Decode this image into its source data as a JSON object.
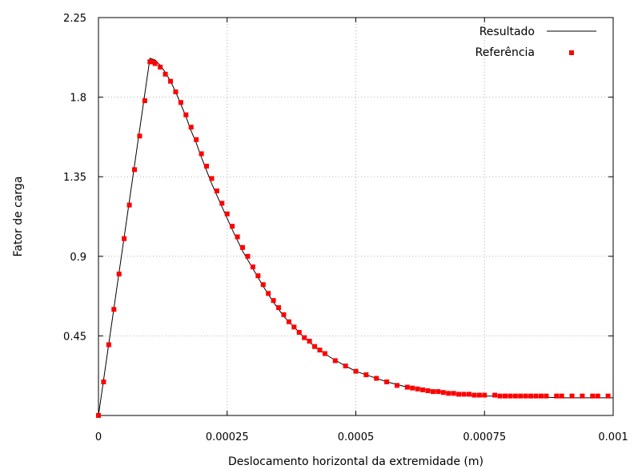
{
  "chart_data": {
    "type": "line",
    "title": "",
    "xlabel": "Deslocamento horizontal da extremidade (m)",
    "ylabel": "Fator de carga",
    "xlim": [
      0,
      0.001
    ],
    "ylim": [
      0,
      2.25
    ],
    "xticks": [
      0,
      0.00025,
      0.0005,
      0.00075,
      0.001
    ],
    "xtick_labels": [
      "0",
      "0.00025",
      "0.0005",
      "0.00075",
      "0.001"
    ],
    "yticks": [
      0.45,
      0.9,
      1.35,
      1.8,
      2.25
    ],
    "ytick_labels": [
      "0.45",
      "0.9",
      "1.35",
      "1.8",
      "2.25"
    ],
    "grid": true,
    "legend_position": "top-right",
    "series": [
      {
        "name": "Resultado",
        "style": "line",
        "color": "#000000",
        "x": [
          0,
          0.0001,
          0.00011,
          0.00012,
          0.00013,
          0.00014,
          0.00015,
          0.00016,
          0.00017,
          0.00018,
          0.00019,
          0.0002,
          0.00022,
          0.00024,
          0.00026,
          0.00028,
          0.0003,
          0.00032,
          0.00034,
          0.00036,
          0.00038,
          0.0004,
          0.00042,
          0.00045,
          0.00048,
          0.0005,
          0.00053,
          0.00056,
          0.0006,
          0.00065,
          0.0007,
          0.00075,
          0.0008,
          0.00085,
          0.0009,
          0.00095,
          0.001
        ],
        "y": [
          0,
          2.02,
          2.01,
          1.98,
          1.94,
          1.89,
          1.83,
          1.76,
          1.69,
          1.61,
          1.54,
          1.46,
          1.31,
          1.18,
          1.05,
          0.93,
          0.83,
          0.73,
          0.64,
          0.56,
          0.5,
          0.44,
          0.39,
          0.33,
          0.28,
          0.25,
          0.22,
          0.19,
          0.16,
          0.14,
          0.12,
          0.11,
          0.11,
          0.105,
          0.1,
          0.1,
          0.1
        ]
      },
      {
        "name": "Referência",
        "style": "markers",
        "color": "#ff0000",
        "x": [
          0,
          1e-05,
          2e-05,
          3e-05,
          4e-05,
          5e-05,
          6e-05,
          7e-05,
          8e-05,
          9e-05,
          0.0001,
          0.000105,
          0.00011,
          0.00012,
          0.00013,
          0.00014,
          0.00015,
          0.00016,
          0.00017,
          0.00018,
          0.00019,
          0.0002,
          0.00021,
          0.00022,
          0.00023,
          0.00024,
          0.00025,
          0.00026,
          0.00027,
          0.00028,
          0.00029,
          0.0003,
          0.00031,
          0.00032,
          0.00033,
          0.00034,
          0.00035,
          0.00036,
          0.00037,
          0.00038,
          0.00039,
          0.0004,
          0.00041,
          0.00042,
          0.00043,
          0.00044,
          0.00046,
          0.00048,
          0.0005,
          0.00052,
          0.00054,
          0.00056,
          0.00058,
          0.0006,
          0.00061,
          0.00062,
          0.00063,
          0.00064,
          0.00065,
          0.00066,
          0.00067,
          0.00068,
          0.00069,
          0.0007,
          0.00071,
          0.00072,
          0.00073,
          0.00074,
          0.00075,
          0.00077,
          0.00078,
          0.00079,
          0.0008,
          0.00081,
          0.00082,
          0.00083,
          0.00084,
          0.00085,
          0.00086,
          0.00087,
          0.00089,
          0.0009,
          0.00092,
          0.00094,
          0.00096,
          0.00097,
          0.00099
        ],
        "y": [
          0,
          0.19,
          0.4,
          0.6,
          0.8,
          1.0,
          1.19,
          1.39,
          1.58,
          1.78,
          2.0,
          2.0,
          1.99,
          1.97,
          1.93,
          1.89,
          1.83,
          1.77,
          1.7,
          1.63,
          1.56,
          1.48,
          1.41,
          1.34,
          1.27,
          1.2,
          1.14,
          1.07,
          1.01,
          0.95,
          0.9,
          0.84,
          0.79,
          0.74,
          0.69,
          0.65,
          0.61,
          0.57,
          0.53,
          0.5,
          0.47,
          0.44,
          0.42,
          0.39,
          0.37,
          0.35,
          0.31,
          0.28,
          0.25,
          0.23,
          0.21,
          0.19,
          0.17,
          0.16,
          0.155,
          0.15,
          0.145,
          0.14,
          0.135,
          0.135,
          0.13,
          0.125,
          0.125,
          0.12,
          0.12,
          0.12,
          0.115,
          0.115,
          0.115,
          0.115,
          0.11,
          0.11,
          0.11,
          0.11,
          0.11,
          0.11,
          0.11,
          0.11,
          0.11,
          0.11,
          0.11,
          0.11,
          0.11,
          0.11,
          0.11,
          0.11,
          0.11
        ]
      }
    ]
  }
}
